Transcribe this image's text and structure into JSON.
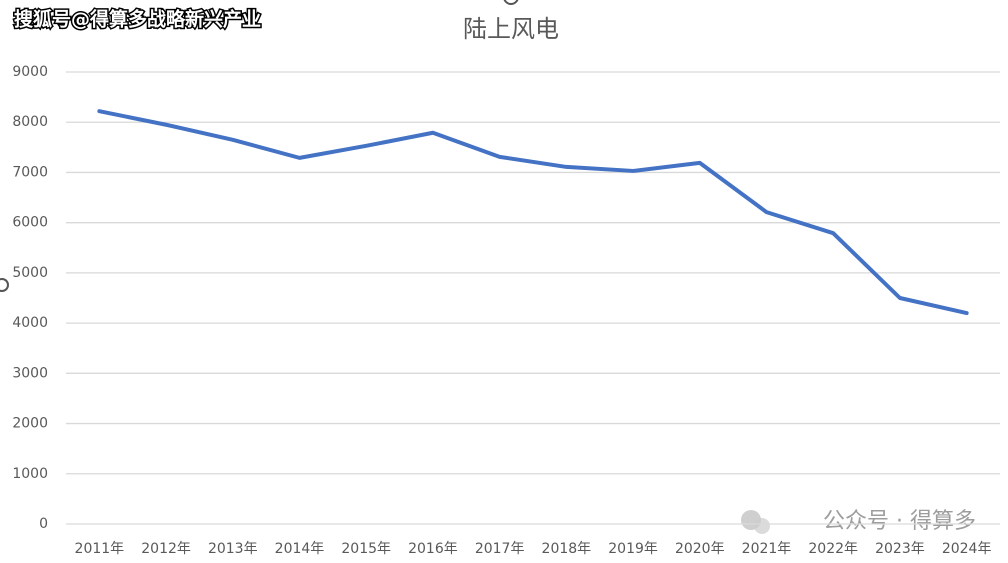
{
  "chart_data": {
    "type": "line",
    "title": "陆上风电",
    "categories": [
      "2011年",
      "2012年",
      "2013年",
      "2014年",
      "2015年",
      "2016年",
      "2017年",
      "2018年",
      "2019年",
      "2020年",
      "2021年",
      "2022年",
      "2023年",
      "2024年"
    ],
    "values": [
      8220,
      7950,
      7650,
      7290,
      7530,
      7790,
      7310,
      7110,
      7030,
      7190,
      6210,
      5790,
      4500,
      4200
    ],
    "color": "#4472c4",
    "ylim": [
      0,
      9000
    ],
    "yticks": [
      0,
      1000,
      2000,
      3000,
      4000,
      5000,
      6000,
      7000,
      8000,
      9000
    ],
    "grid": true,
    "annotations": [
      "搜狐号@得算多战略新兴产业",
      "公众号 · 得算多"
    ]
  }
}
